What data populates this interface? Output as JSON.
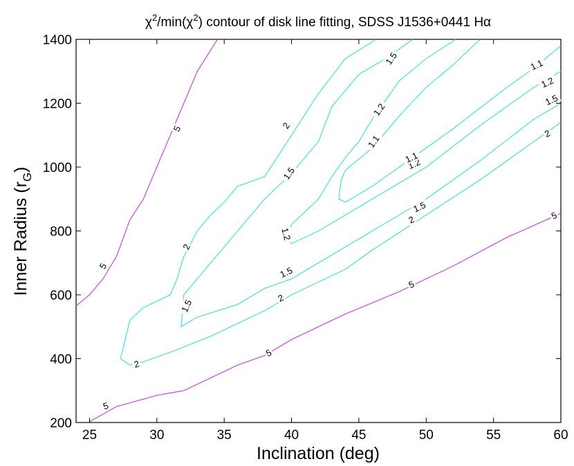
{
  "chart_data": {
    "type": "line",
    "title_parts": {
      "chi": "χ",
      "sup": "2",
      "mid": "/min(χ",
      "sup2": "2",
      "rest": ") contour of disk line fitting, SDSS J1536+0441 Hα"
    },
    "xlabel": "Inclination (deg)",
    "ylabel_main": "Inner Radius (r",
    "ylabel_sub": "G",
    "ylabel_close": ")",
    "xlim": [
      24,
      60
    ],
    "ylim": [
      200,
      1400
    ],
    "xticks": [
      25,
      30,
      35,
      40,
      45,
      50,
      55,
      60
    ],
    "yticks": [
      200,
      400,
      600,
      800,
      1000,
      1200,
      1400
    ],
    "colors": {
      "purple": "#cc44ee",
      "cyan": "#44e0e8"
    },
    "series": [
      {
        "level": "5",
        "color": "purple",
        "points": [
          [
            24,
            565
          ],
          [
            25,
            600
          ],
          [
            26,
            650
          ],
          [
            27,
            720
          ],
          [
            28,
            835
          ],
          [
            29,
            900
          ],
          [
            30,
            1000
          ],
          [
            31,
            1100
          ],
          [
            32,
            1200
          ],
          [
            33,
            1300
          ],
          [
            34.5,
            1400
          ]
        ],
        "labels": [
          {
            "text": "5",
            "x": 31.5,
            "y": 1120,
            "angle": -65
          },
          {
            "text": "5",
            "x": 26,
            "y": 690,
            "angle": -60
          }
        ]
      },
      {
        "level": "5",
        "color": "purple",
        "points": [
          [
            24.9,
            200
          ],
          [
            27,
            250
          ],
          [
            30,
            285
          ],
          [
            32,
            300
          ],
          [
            36,
            380
          ],
          [
            38,
            410
          ],
          [
            40,
            460
          ],
          [
            42,
            500
          ],
          [
            44,
            540
          ],
          [
            48,
            610
          ],
          [
            52,
            690
          ],
          [
            56,
            780
          ],
          [
            60,
            855
          ]
        ],
        "labels": [
          {
            "text": "5",
            "x": 26.2,
            "y": 252,
            "angle": -20
          },
          {
            "text": "5",
            "x": 38.3,
            "y": 418,
            "angle": -25
          },
          {
            "text": "5",
            "x": 48.9,
            "y": 632,
            "angle": -25
          },
          {
            "text": "5",
            "x": 59.5,
            "y": 848,
            "angle": -25
          }
        ]
      },
      {
        "level": "2",
        "color": "cyan",
        "points": [
          [
            46.3,
            1400
          ],
          [
            44,
            1340
          ],
          [
            42,
            1230
          ],
          [
            40,
            1100
          ],
          [
            38,
            970
          ],
          [
            36,
            940
          ],
          [
            35,
            890
          ],
          [
            34,
            850
          ],
          [
            33,
            800
          ],
          [
            32,
            720
          ],
          [
            31.5,
            650
          ],
          [
            31,
            600
          ],
          [
            29,
            560
          ],
          [
            28,
            520
          ],
          [
            27.3,
            400
          ],
          [
            28,
            380
          ],
          [
            29,
            390
          ],
          [
            31,
            420
          ],
          [
            34,
            470
          ],
          [
            36,
            510
          ],
          [
            38,
            550
          ],
          [
            40,
            600
          ],
          [
            44,
            680
          ],
          [
            46,
            740
          ],
          [
            50,
            850
          ],
          [
            54,
            960
          ],
          [
            58,
            1080
          ],
          [
            60,
            1140
          ]
        ],
        "labels": [
          {
            "text": "2",
            "x": 39.6,
            "y": 1130,
            "angle": -55
          },
          {
            "text": "2",
            "x": 32.2,
            "y": 750,
            "angle": -65
          },
          {
            "text": "2",
            "x": 28.5,
            "y": 383,
            "angle": -15
          },
          {
            "text": "2",
            "x": 39.2,
            "y": 590,
            "angle": -25
          },
          {
            "text": "2",
            "x": 48.9,
            "y": 835,
            "angle": -25
          },
          {
            "text": "2",
            "x": 59,
            "y": 1105,
            "angle": -25
          }
        ]
      },
      {
        "level": "1.5",
        "color": "cyan",
        "points": [
          [
            49,
            1400
          ],
          [
            47,
            1340
          ],
          [
            45,
            1290
          ],
          [
            43,
            1190
          ],
          [
            42,
            1080
          ],
          [
            40,
            980
          ],
          [
            38,
            900
          ],
          [
            36,
            800
          ],
          [
            34,
            700
          ],
          [
            33,
            650
          ],
          [
            32,
            600
          ],
          [
            31.8,
            500
          ],
          [
            33,
            530
          ],
          [
            36,
            570
          ],
          [
            38,
            620
          ],
          [
            40,
            650
          ],
          [
            42,
            700
          ],
          [
            44,
            750
          ],
          [
            46,
            800
          ],
          [
            50,
            900
          ],
          [
            54,
            1020
          ],
          [
            58,
            1150
          ],
          [
            60,
            1200
          ]
        ],
        "labels": [
          {
            "text": "1.5",
            "x": 47.4,
            "y": 1340,
            "angle": -55
          },
          {
            "text": "1.5",
            "x": 39.8,
            "y": 980,
            "angle": -55
          },
          {
            "text": "1.5",
            "x": 32.2,
            "y": 565,
            "angle": -65
          },
          {
            "text": "1.5",
            "x": 39.6,
            "y": 670,
            "angle": -25
          },
          {
            "text": "1.5",
            "x": 49.5,
            "y": 875,
            "angle": -25
          },
          {
            "text": "1.5",
            "x": 59.3,
            "y": 1210,
            "angle": -25
          }
        ]
      },
      {
        "level": "1.2",
        "color": "cyan",
        "points": [
          [
            52.2,
            1400
          ],
          [
            50,
            1340
          ],
          [
            48,
            1270
          ],
          [
            46,
            1150
          ],
          [
            45,
            1080
          ],
          [
            44,
            1030
          ],
          [
            43,
            970
          ],
          [
            42,
            900
          ],
          [
            41,
            860
          ],
          [
            40,
            820
          ],
          [
            39.7,
            790
          ],
          [
            40,
            760
          ],
          [
            42,
            800
          ],
          [
            44,
            850
          ],
          [
            46,
            900
          ],
          [
            50,
            1000
          ],
          [
            54,
            1130
          ],
          [
            58,
            1250
          ],
          [
            60,
            1300
          ]
        ],
        "labels": [
          {
            "text": "1.2",
            "x": 46.5,
            "y": 1180,
            "angle": -55
          },
          {
            "text": "1.2",
            "x": 39.6,
            "y": 790,
            "angle": 75
          },
          {
            "text": "1.2",
            "x": 49.1,
            "y": 1010,
            "angle": -25
          },
          {
            "text": "1.2",
            "x": 59,
            "y": 1265,
            "angle": -25
          }
        ]
      },
      {
        "level": "1.1",
        "color": "cyan",
        "points": [
          [
            54,
            1400
          ],
          [
            52,
            1320
          ],
          [
            50,
            1250
          ],
          [
            48,
            1160
          ],
          [
            46,
            1060
          ],
          [
            44,
            990
          ],
          [
            43.7,
            960
          ],
          [
            43.5,
            900
          ],
          [
            44,
            890
          ],
          [
            46,
            940
          ],
          [
            50,
            1060
          ],
          [
            52,
            1120
          ],
          [
            56,
            1250
          ],
          [
            58,
            1310
          ],
          [
            60,
            1380
          ]
        ],
        "labels": [
          {
            "text": "1.1",
            "x": 46.1,
            "y": 1080,
            "angle": -55
          },
          {
            "text": "1.1",
            "x": 48.9,
            "y": 1030,
            "angle": -25
          },
          {
            "text": "1.1",
            "x": 58.2,
            "y": 1320,
            "angle": -25
          }
        ]
      }
    ]
  }
}
